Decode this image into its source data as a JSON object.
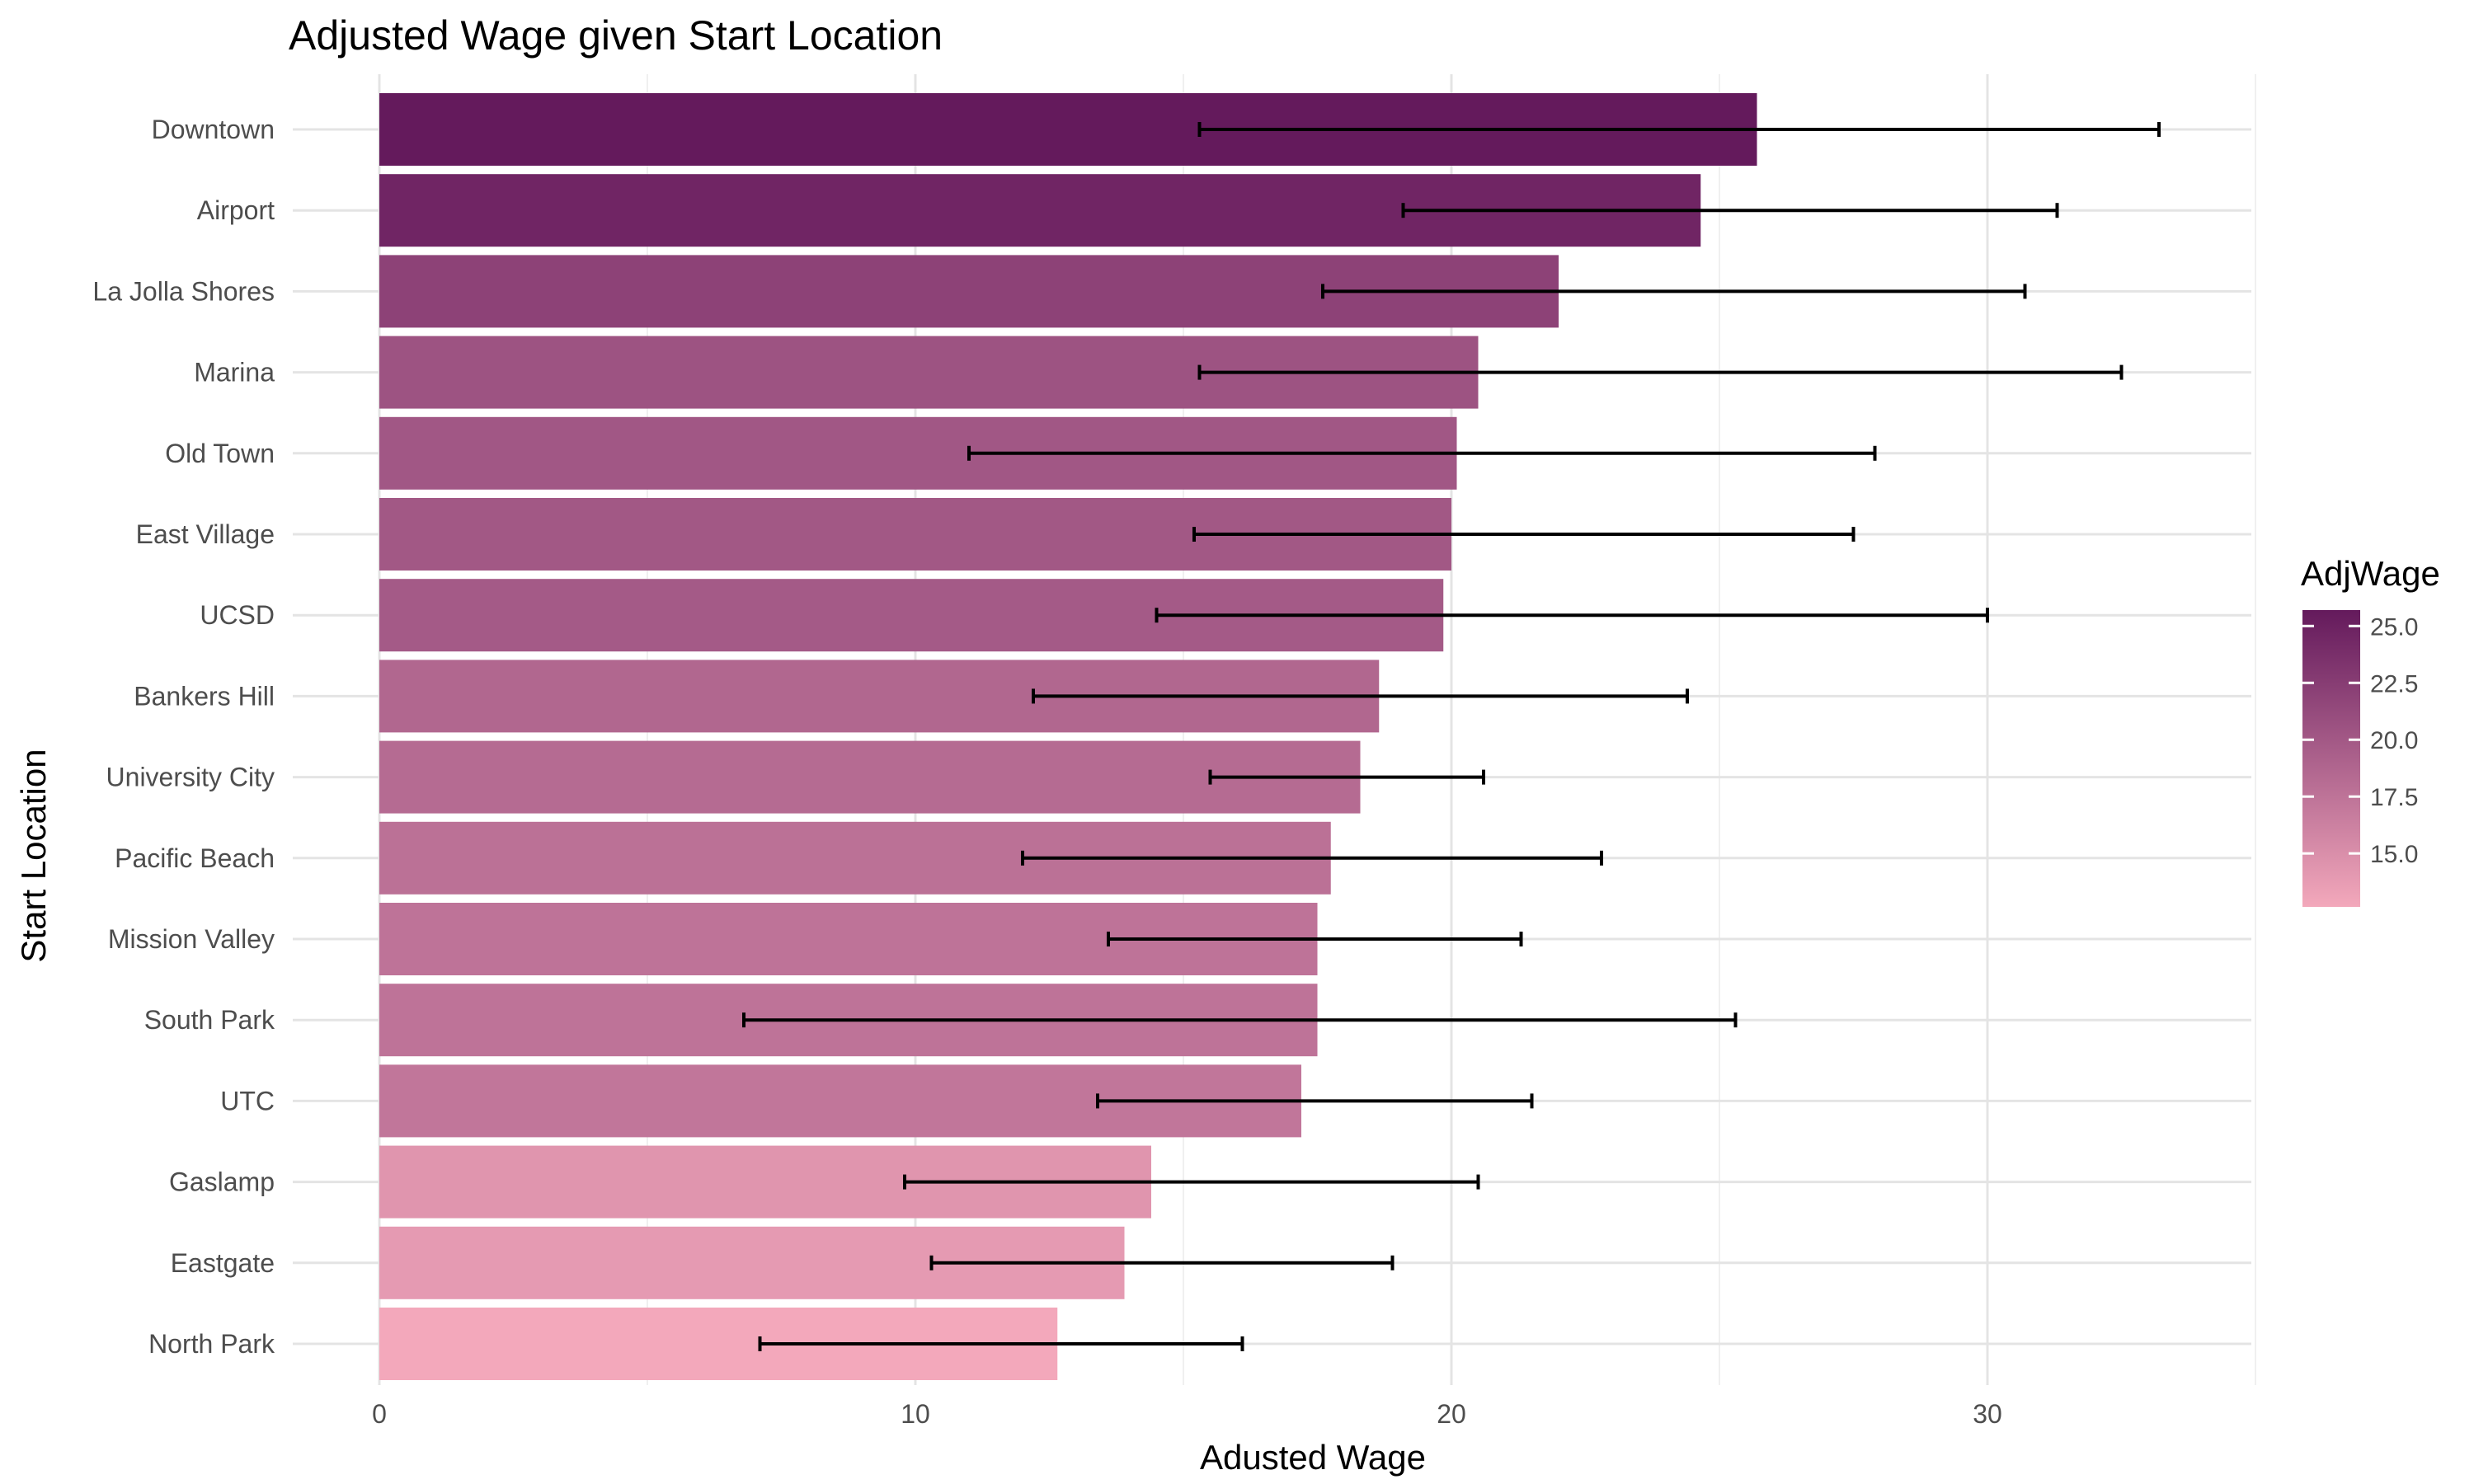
{
  "chart_data": {
    "type": "bar",
    "orientation": "horizontal",
    "title": "Adjusted Wage given Start Location",
    "xlabel": "Adusted Wage",
    "ylabel": "Start Location",
    "xlim": [
      0,
      35
    ],
    "x_ticks": [
      0,
      10,
      20,
      30
    ],
    "grid": true,
    "categories": [
      "Downtown",
      "Airport",
      "La Jolla Shores",
      "Marina",
      "Old Town",
      "East Village",
      "UCSD",
      "Bankers Hill",
      "University City",
      "Pacific Beach",
      "Mission Valley",
      "South Park",
      "UTC",
      "Gaslamp",
      "Eastgate",
      "North Park"
    ],
    "values": [
      25.7,
      24.65,
      22.0,
      20.5,
      20.1,
      20.0,
      19.85,
      18.65,
      18.3,
      17.75,
      17.5,
      17.5,
      17.2,
      14.4,
      13.9,
      12.65
    ],
    "error_low": [
      15.3,
      19.1,
      17.6,
      15.3,
      11.0,
      15.2,
      14.5,
      12.2,
      15.5,
      12.0,
      13.6,
      6.8,
      13.4,
      9.8,
      10.3,
      7.1
    ],
    "error_high": [
      33.2,
      31.3,
      30.7,
      32.5,
      27.9,
      27.5,
      30.0,
      24.4,
      20.6,
      22.8,
      21.3,
      25.3,
      21.5,
      20.5,
      18.9,
      16.1
    ],
    "legend": {
      "title": "AdjWage",
      "position": "right",
      "ticks": [
        25.0,
        22.5,
        20.0,
        17.5,
        15.0
      ],
      "tick_labels": [
        "25.0",
        "22.5",
        "20.0",
        "17.5",
        "15.0"
      ],
      "range": [
        12.65,
        25.7
      ],
      "color_low": "#f3a8bb",
      "color_high": "#641a5c"
    }
  }
}
